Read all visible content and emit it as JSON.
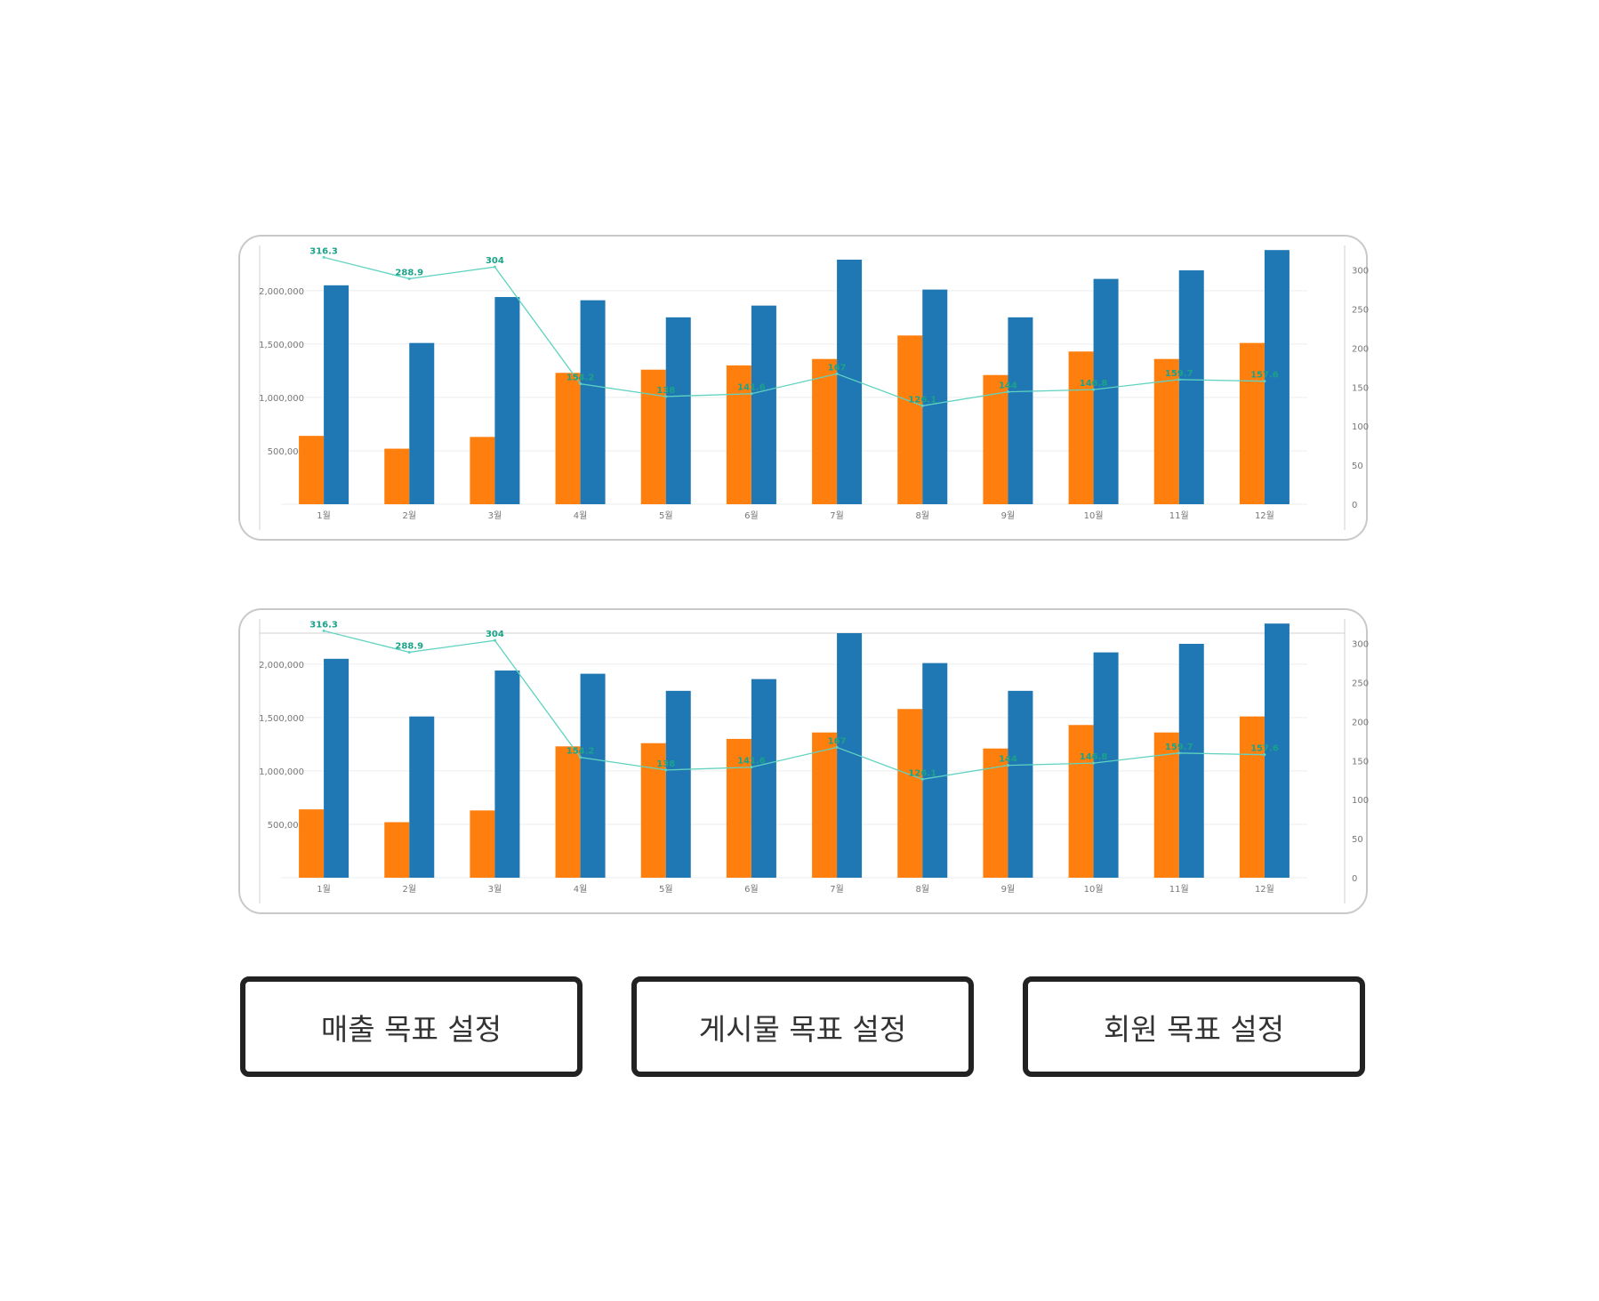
{
  "colors": {
    "orange": "#ff7f0e",
    "blue": "#1f77b4",
    "line": "#5fd3c0",
    "label": "#1aa389",
    "grid": "#eeeeee",
    "axis": "#d0d0d0",
    "tick": "#777777"
  },
  "chart_data": [
    {
      "type": "bar",
      "categories": [
        "1월",
        "2월",
        "3월",
        "4월",
        "5월",
        "6월",
        "7월",
        "8월",
        "9월",
        "10월",
        "11월",
        "12월"
      ],
      "series": [
        {
          "type": "bar",
          "axis": "left",
          "color": "#ff7f0e",
          "values": [
            640000,
            520000,
            630000,
            1230000,
            1260000,
            1300000,
            1360000,
            1580000,
            1210000,
            1430000,
            1360000,
            1510000
          ]
        },
        {
          "type": "bar",
          "axis": "left",
          "color": "#1f77b4",
          "values": [
            2050000,
            1510000,
            1940000,
            1910000,
            1750000,
            1860000,
            2290000,
            2010000,
            1750000,
            2110000,
            2190000,
            2380000
          ]
        },
        {
          "type": "line",
          "axis": "right",
          "color": "#5fd3c0",
          "values": [
            316.3,
            288.9,
            304,
            154.2,
            138,
            141.6,
            167,
            126.1,
            144,
            146.8,
            159.7,
            157.6
          ],
          "labels": [
            "316.3",
            "288.9",
            "304",
            "154.2",
            "138",
            "141.6",
            "167",
            "126.1",
            "144",
            "146.8",
            "159.7",
            "157.6"
          ]
        }
      ],
      "y_left": {
        "ylim": [
          0,
          2390000
        ],
        "ticks": [
          500000,
          1000000,
          1500000,
          2000000
        ],
        "tick_labels": [
          "500,000",
          "1,000,000",
          "1,500,000",
          "2,000,000"
        ]
      },
      "y_right": {
        "ylim": [
          0,
          327
        ],
        "ticks": [
          0,
          50,
          100,
          150,
          200,
          250,
          300
        ],
        "tick_labels": [
          "0",
          "50",
          "100",
          "150",
          "200",
          "250",
          "300"
        ]
      },
      "grid": true
    },
    {
      "type": "bar",
      "categories": [
        "1월",
        "2월",
        "3월",
        "4월",
        "5월",
        "6월",
        "7월",
        "8월",
        "9월",
        "10월",
        "11월",
        "12월"
      ],
      "series": [
        {
          "type": "bar",
          "axis": "left",
          "color": "#ff7f0e",
          "values": [
            640000,
            520000,
            630000,
            1230000,
            1260000,
            1300000,
            1360000,
            1580000,
            1210000,
            1430000,
            1360000,
            1510000
          ]
        },
        {
          "type": "bar",
          "axis": "left",
          "color": "#1f77b4",
          "values": [
            2050000,
            1510000,
            1940000,
            1910000,
            1750000,
            1860000,
            2290000,
            2010000,
            1750000,
            2110000,
            2190000,
            2380000
          ]
        },
        {
          "type": "line",
          "axis": "right",
          "color": "#5fd3c0",
          "values": [
            316.3,
            288.9,
            304,
            154.2,
            138,
            141.6,
            167,
            126.1,
            144,
            146.8,
            159.7,
            157.6
          ],
          "labels": [
            "316.3",
            "288.9",
            "304",
            "154.2",
            "138",
            "141.6",
            "167",
            "126.1",
            "144",
            "146.8",
            "159.7",
            "157.6"
          ]
        }
      ],
      "y_left": {
        "ylim": [
          0,
          2390000
        ],
        "ticks": [
          500000,
          1000000,
          1500000,
          2000000
        ],
        "tick_labels": [
          "500,000",
          "1,000,000",
          "1,500,000",
          "2,000,000"
        ]
      },
      "y_right": {
        "ylim": [
          0,
          327
        ],
        "ticks": [
          0,
          50,
          100,
          150,
          200,
          250,
          300
        ],
        "tick_labels": [
          "0",
          "50",
          "100",
          "150",
          "200",
          "250",
          "300"
        ]
      },
      "grid": true
    }
  ],
  "buttons": {
    "sales_goal": "매출 목표 설정",
    "post_goal": "게시물 목표 설정",
    "member_goal": "회원 목표 설정"
  }
}
